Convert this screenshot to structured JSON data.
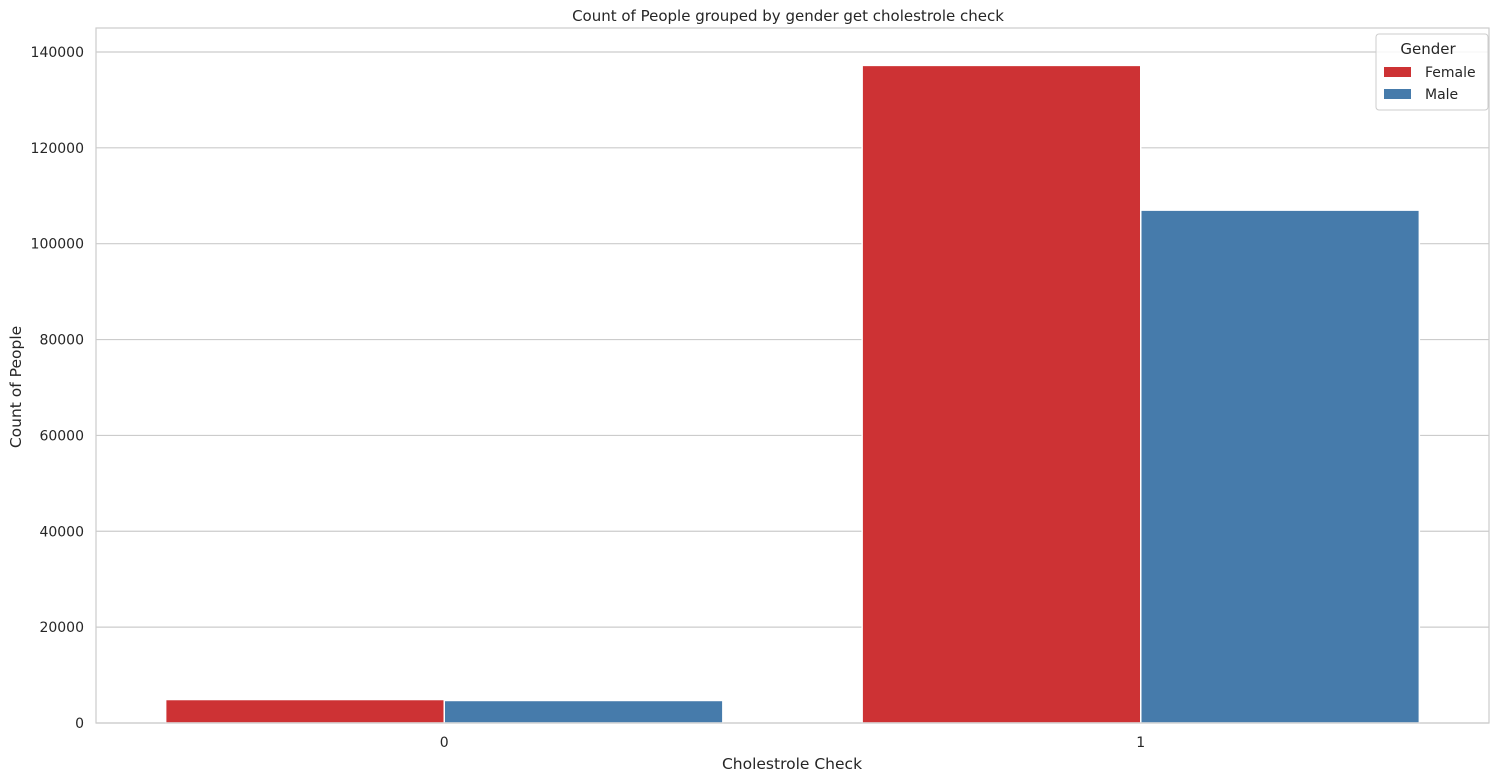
{
  "chart_data": {
    "type": "bar",
    "title": "Count of People grouped by gender get cholestrole check",
    "xlabel": "Cholestrole Check",
    "ylabel": "Count of People",
    "categories": [
      "0",
      "1"
    ],
    "series": [
      {
        "name": "Female",
        "color": "#cd3234",
        "values": [
          4900,
          137200
        ]
      },
      {
        "name": "Male",
        "color": "#467bab",
        "values": [
          4700,
          107000
        ]
      }
    ],
    "ylim": [
      0,
      145000
    ],
    "yticks": [
      0,
      20000,
      40000,
      60000,
      80000,
      100000,
      120000,
      140000
    ],
    "grid": true,
    "legend": {
      "title": "Gender",
      "placement": "top-right"
    }
  }
}
